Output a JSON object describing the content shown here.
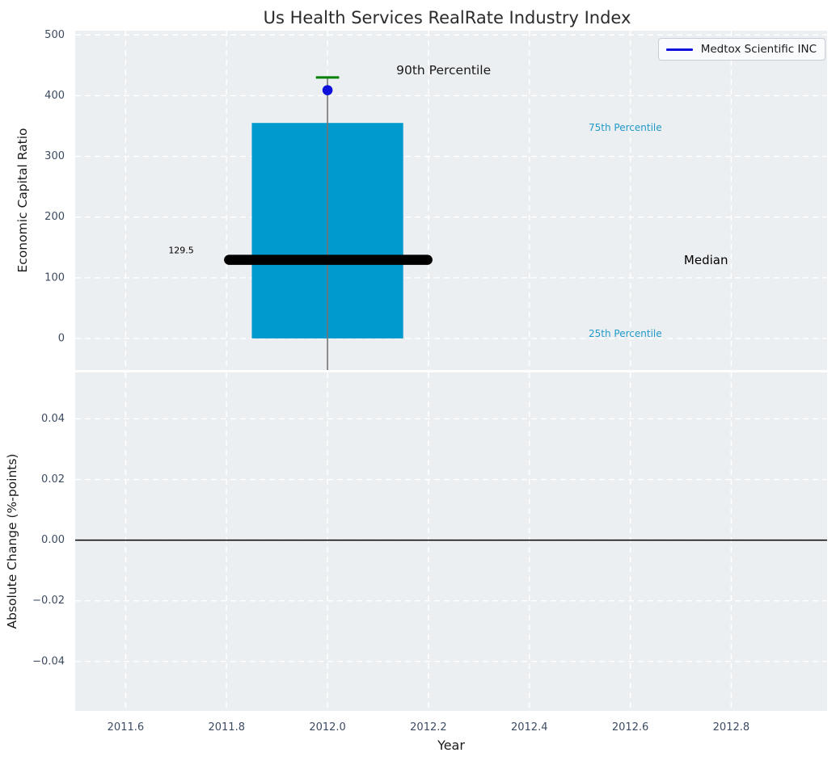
{
  "figure": {
    "title": "Us Health Services RealRate Industry Index",
    "background_color": "#ffffff",
    "axes_background_color": "#eceff1",
    "grid_color": "#ffffff",
    "tick_label_color": "#3d4b61"
  },
  "legend": {
    "label": "Medtox Scientific INC",
    "line_color": "#1010dd",
    "position": "upper right"
  },
  "chart_data": [
    {
      "type": "boxplot",
      "panel": "top",
      "ylabel": "Economic Capital Ratio",
      "xlim": [
        2011.5,
        2012.99
      ],
      "ylim": [
        -52,
        507
      ],
      "grid": true,
      "yticks": [
        {
          "v": 0,
          "label": "0"
        },
        {
          "v": 100,
          "label": "100"
        },
        {
          "v": 200,
          "label": "200"
        },
        {
          "v": 300,
          "label": "300"
        },
        {
          "v": 400,
          "label": "400"
        },
        {
          "v": 500,
          "label": "500"
        }
      ],
      "xticks": [
        {
          "v": 2011.6,
          "label": "2011.6"
        },
        {
          "v": 2011.8,
          "label": "2011.8"
        },
        {
          "v": 2012.0,
          "label": "2012.0"
        },
        {
          "v": 2012.2,
          "label": "2012.2"
        },
        {
          "v": 2012.4,
          "label": "2012.4"
        },
        {
          "v": 2012.6,
          "label": "2012.6"
        },
        {
          "v": 2012.8,
          "label": "2012.8"
        }
      ],
      "show_xtick_labels": false,
      "box": {
        "year": 2012.0,
        "x_left": 2011.85,
        "x_right": 2012.15,
        "x_center": 2012.0,
        "percentile_25": 0,
        "percentile_75": 355,
        "median": 129.5,
        "percentile_90_cap": 430,
        "whisker_low": -52,
        "cap_half_width_years": 0.023,
        "box_color": "#009ace",
        "cap_color": "#008000",
        "whisker_color": "#737373",
        "median_color": "#000000"
      },
      "median_line": {
        "x_left": 2011.805,
        "x_right": 2012.198,
        "value": 129.5,
        "width": 12.5
      },
      "company_point": {
        "series": "Medtox Scientific INC",
        "x": 2012.0,
        "y": 409,
        "color": "#1010dd",
        "radius": 6.3
      },
      "annotations": [
        {
          "text": "90th Percentile",
          "x": 2012.23,
          "y": 442,
          "color": "#1a1a1a",
          "size": 15.5
        },
        {
          "text": "75th Percentile",
          "x": 2012.59,
          "y": 347,
          "color": "#1f9ac9",
          "size": 12
        },
        {
          "text": "Median",
          "x": 2012.75,
          "y": 129,
          "color": "#000000",
          "size": 15
        },
        {
          "text": "25th Percentile",
          "x": 2012.59,
          "y": 8,
          "color": "#1f9ac9",
          "size": 12
        },
        {
          "text": "129.5",
          "x": 2011.71,
          "y": 145,
          "color": "#000000",
          "size": 11
        }
      ]
    },
    {
      "type": "line",
      "panel": "bottom",
      "ylabel": "Absolute Change (%-points)",
      "xlabel": "Year",
      "xlim": [
        2011.5,
        2012.99
      ],
      "ylim": [
        -0.0563,
        0.0553
      ],
      "grid": true,
      "yticks": [
        {
          "v": 0.04,
          "label": "0.04"
        },
        {
          "v": 0.02,
          "label": "0.02"
        },
        {
          "v": 0.0,
          "label": "0.00"
        },
        {
          "v": -0.02,
          "label": "−0.02"
        },
        {
          "v": -0.04,
          "label": "−0.04"
        }
      ],
      "xticks": [
        {
          "v": 2011.6,
          "label": "2011.6"
        },
        {
          "v": 2011.8,
          "label": "2011.8"
        },
        {
          "v": 2012.0,
          "label": "2012.0"
        },
        {
          "v": 2012.2,
          "label": "2012.2"
        },
        {
          "v": 2012.4,
          "label": "2012.4"
        },
        {
          "v": 2012.6,
          "label": "2012.6"
        },
        {
          "v": 2012.8,
          "label": "2012.8"
        }
      ],
      "show_xtick_labels": true,
      "zero_line": {
        "value": 0.0,
        "color": "#000000",
        "width": 1.6
      },
      "series": []
    }
  ]
}
